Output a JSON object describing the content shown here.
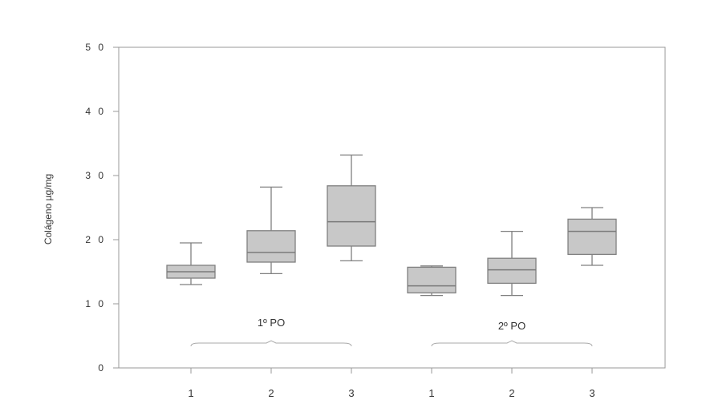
{
  "chart_data": {
    "type": "box",
    "ylabel": "Colágeno µg/mg",
    "xlabel": "",
    "ylim": [
      0,
      50
    ],
    "y_ticks": [
      {
        "value": 0,
        "label": "0"
      },
      {
        "value": 10,
        "label": "1 0"
      },
      {
        "value": 20,
        "label": "2 0"
      },
      {
        "value": 30,
        "label": "3 0"
      },
      {
        "value": 40,
        "label": "4 0"
      },
      {
        "value": 50,
        "label": "5 0"
      }
    ],
    "categories": [
      "1",
      "2",
      "3",
      "1",
      "2",
      "3"
    ],
    "groups": [
      {
        "label": "1º PO",
        "categories": [
          0,
          1,
          2
        ]
      },
      {
        "label": "2º PO",
        "categories": [
          3,
          4,
          5
        ]
      }
    ],
    "boxes": [
      {
        "min": 13.0,
        "q1": 14.0,
        "median": 15.0,
        "q3": 16.0,
        "max": 19.5
      },
      {
        "min": 14.7,
        "q1": 16.5,
        "median": 18.0,
        "q3": 21.4,
        "max": 28.2
      },
      {
        "min": 16.7,
        "q1": 19.0,
        "median": 22.8,
        "q3": 28.4,
        "max": 33.2
      },
      {
        "min": 11.3,
        "q1": 11.7,
        "median": 12.8,
        "q3": 15.7,
        "max": 15.9
      },
      {
        "min": 11.3,
        "q1": 13.2,
        "median": 15.3,
        "q3": 17.1,
        "max": 21.3
      },
      {
        "min": 16.0,
        "q1": 17.7,
        "median": 21.3,
        "q3": 23.2,
        "max": 25.0
      }
    ],
    "grid": false,
    "box_fill": "#c8c8c8",
    "stroke_color": "#808080"
  }
}
